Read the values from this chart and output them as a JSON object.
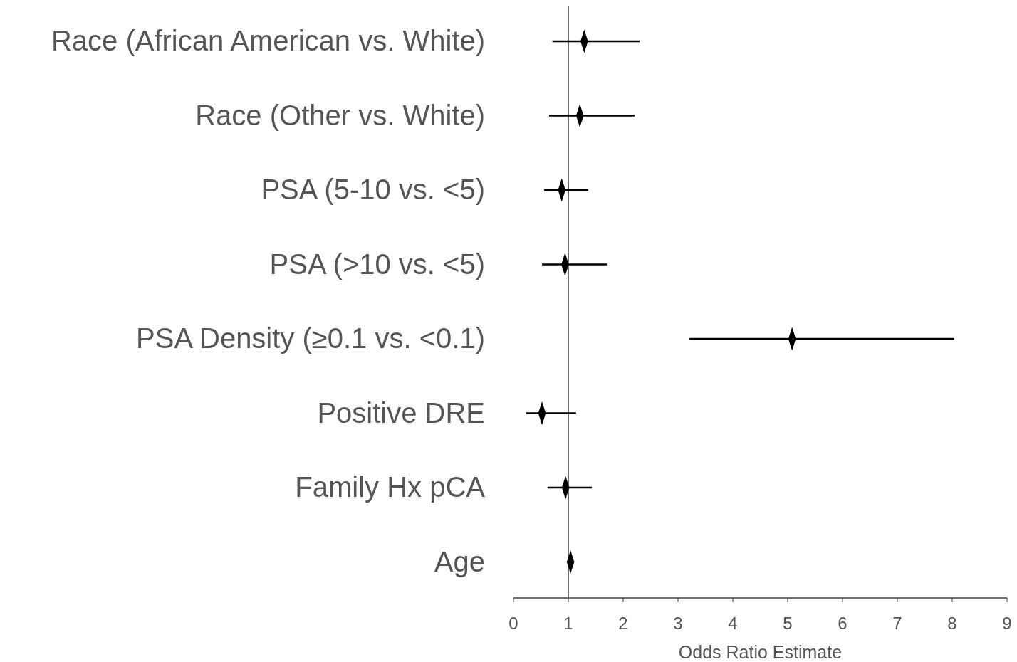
{
  "chart_data": {
    "type": "scatter",
    "orientation": "horizontal",
    "xlabel": "Odds Ratio Estimate",
    "categories": [
      "Race (African American vs. White)",
      "Race (Other vs. White)",
      "PSA (5-10 vs. <5)",
      "PSA (>10 vs. <5)",
      "PSA Density (≥0.1 vs. <0.1)",
      "Positive DRE",
      "Family Hx pCA",
      "Age"
    ],
    "values": [
      1.29,
      1.21,
      0.88,
      0.94,
      5.08,
      0.52,
      0.95,
      1.04
    ],
    "errors": [
      [
        0.71,
        2.3
      ],
      [
        0.65,
        2.21
      ],
      [
        0.56,
        1.36
      ],
      [
        0.52,
        1.71
      ],
      [
        3.21,
        8.04
      ],
      [
        0.23,
        1.14
      ],
      [
        0.62,
        1.43
      ],
      null
    ],
    "color": "#000000",
    "marker": "diamond",
    "xlim": [
      0,
      9
    ],
    "xticks": [
      0,
      1,
      2,
      3,
      4,
      5,
      6,
      7,
      8,
      9
    ],
    "ref_lines": [
      {
        "axis": "x",
        "value": 1,
        "color": "#404040"
      }
    ],
    "grid": false
  }
}
